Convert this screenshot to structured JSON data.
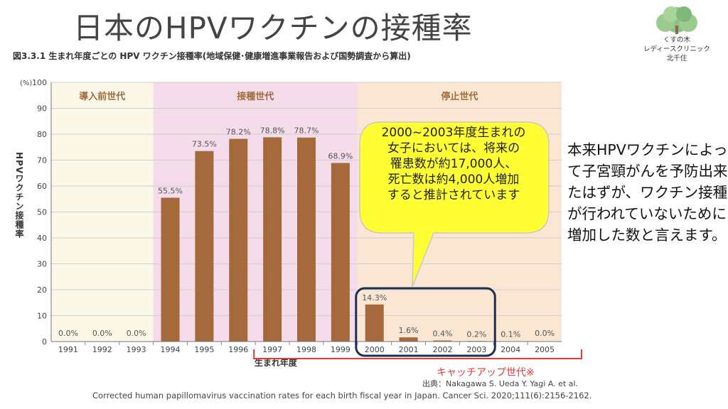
{
  "title": "日本のHPVワクチンの接種率",
  "figure_caption": "図3.3.1  生まれ年度ごとの HPV ワクチン接種率(地域保健･健康増進事業報告および国勢調査から算出)",
  "logo": {
    "line1": "くすの木",
    "line2": "レディースクリニック",
    "line3": "北千住"
  },
  "colors": {
    "bar": "#a5693b",
    "era_pre": "#fbf8e7",
    "era_vacc": "#f5dcea",
    "era_stop": "#fae6d3",
    "callout": "#ffff33",
    "highlight": "#1f2d4e",
    "bracket": "#e53935"
  },
  "chart_data": {
    "type": "bar",
    "title": "生まれ年度ごとの HPV ワクチン接種率",
    "xlabel": "生まれ年度",
    "ylabel": "HPVワクチン接種率",
    "y_unit_label": "(%)",
    "ylim": [
      0,
      100
    ],
    "yticks": [
      0,
      10,
      20,
      30,
      40,
      50,
      60,
      70,
      80,
      90,
      100
    ],
    "categories": [
      "1991",
      "1992",
      "1993",
      "1994",
      "1995",
      "1996",
      "1997",
      "1998",
      "1999",
      "2000",
      "2001",
      "2002",
      "2003",
      "2004",
      "2005"
    ],
    "values": [
      0.0,
      0.0,
      0.0,
      55.5,
      73.5,
      78.2,
      78.8,
      78.7,
      68.9,
      14.3,
      1.6,
      0.4,
      0.2,
      0.1,
      0.0
    ],
    "labels": [
      "0.0%",
      "0.0%",
      "0.0%",
      "55.5%",
      "73.5%",
      "78.2%",
      "78.8%",
      "78.7%",
      "68.9%",
      "14.3%",
      "1.6%",
      "0.4%",
      "0.2%",
      "0.1%",
      "0.0%"
    ],
    "eras": [
      {
        "name": "導入前世代",
        "from": "1991",
        "to": "1993"
      },
      {
        "name": "接種世代",
        "from": "1994",
        "to": "1999"
      },
      {
        "name": "停止世代",
        "from": "2000",
        "to": "2005"
      }
    ],
    "highlight_range": [
      "2000",
      "2003"
    ]
  },
  "callout": {
    "lines": [
      "2000~2003年度生まれの",
      "女子においては、将来の",
      "罹患数が約17,000人、",
      "死亡数は約4,000人増加",
      "すると推計されています"
    ]
  },
  "side_note": "本来HPVワクチンによって子宮頸がんを予防出来たはずが、ワクチン接種が行われていないために増加した数と言えます。",
  "catchup_label": "キャッチアップ世代※",
  "source_line1": "出典：Nakagawa S. Ueda Y. Yagi A. et al.",
  "source_line2": "Corrected human papillomavirus vaccination rates for each birth fiscal year in Japan. Cancer Sci. 2020;111(6):2156-2162."
}
